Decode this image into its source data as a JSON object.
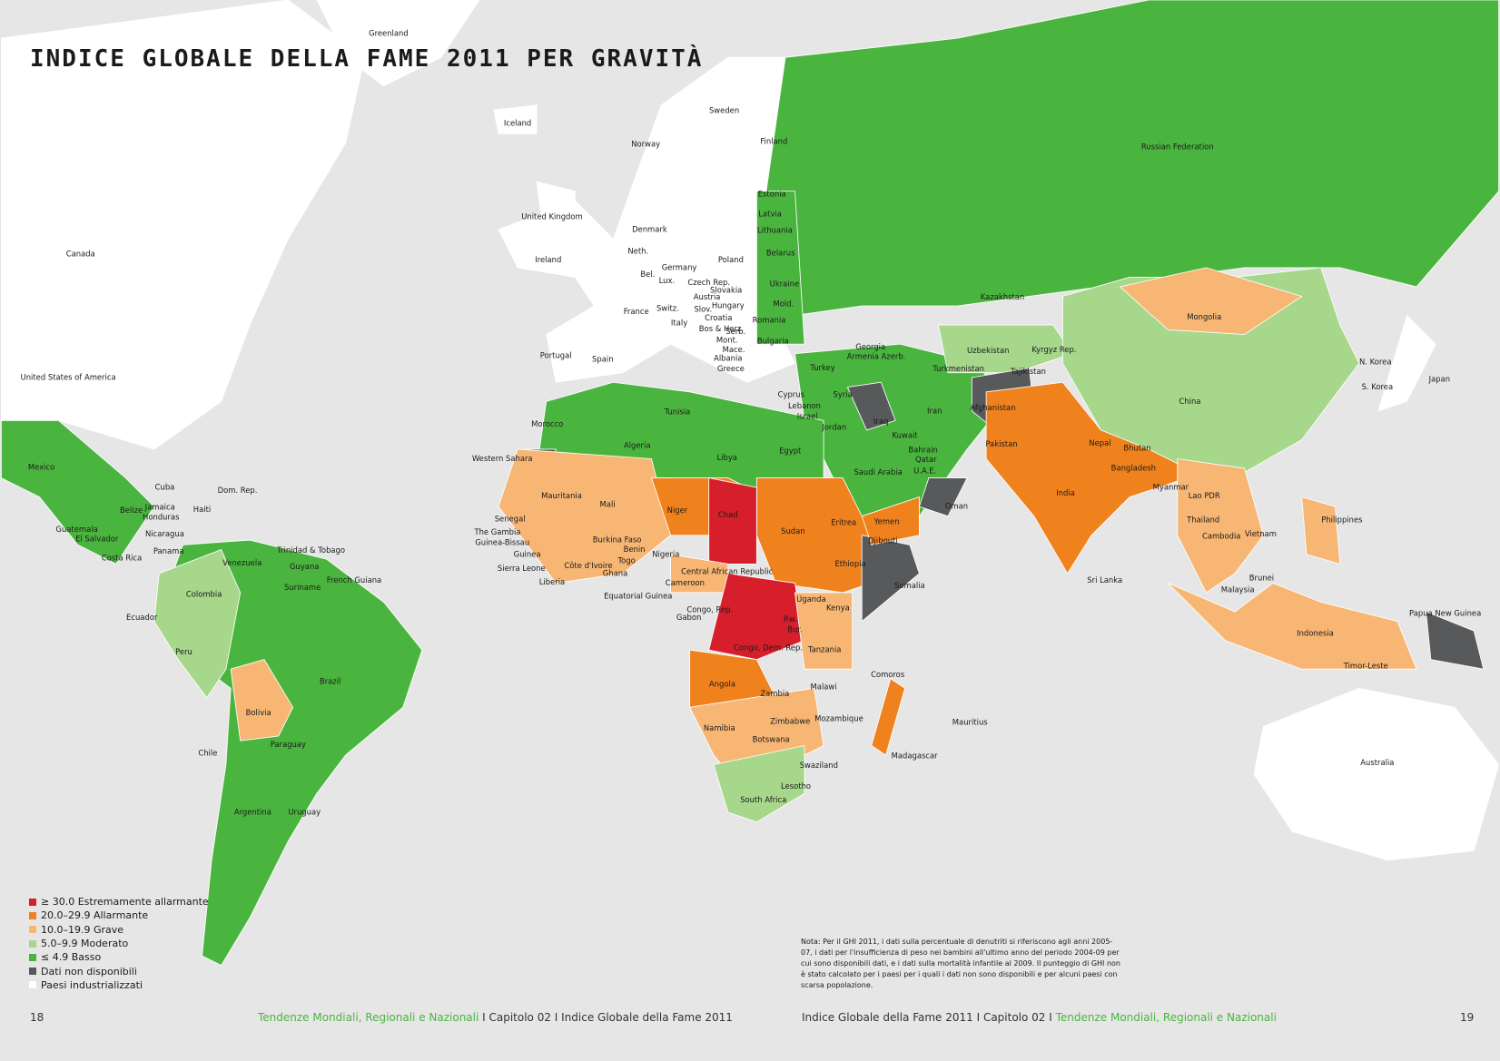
{
  "header": {
    "title": "INDICE GLOBALE DELLA FAME 2011 PER GRAVITÀ"
  },
  "legend": [
    {
      "label": "≥ 30.0 Estremamente allarmante",
      "color": "#d71f2b"
    },
    {
      "label": "20.0–29.9 Allarmante",
      "color": "#f0821e"
    },
    {
      "label": "10.0–19.9 Grave",
      "color": "#f7b674"
    },
    {
      "label": "5.0–9.9 Moderato",
      "color": "#a6d78a"
    },
    {
      "label": "≤ 4.9 Basso",
      "color": "#4ab53e"
    },
    {
      "label": "Dati non disponibili",
      "color": "#58595b"
    },
    {
      "label": "Paesi industrializzati",
      "color": "#ffffff"
    }
  ],
  "countries": [
    "Greenland",
    "Iceland",
    "Sweden",
    "Norway",
    "Finland",
    "Russian Federation",
    "Estonia",
    "United Kingdom",
    "Latvia",
    "Denmark",
    "Lithuania",
    "Belarus",
    "Canada",
    "Ireland",
    "Neth.",
    "Poland",
    "Germany",
    "Bel.",
    "Lux.",
    "Czech Rep.",
    "Ukraine",
    "Slovakia",
    "Austria",
    "Kazakhstan",
    "France",
    "Switz.",
    "Hungary",
    "Mold.",
    "Slov.",
    "Croatia",
    "Romania",
    "Mongolia",
    "Italy",
    "Bos & Herz.",
    "Serb.",
    "Mont.",
    "Bulgaria",
    "Mace.",
    "Georgia",
    "Uzbekistan",
    "Kyrgyz Rep.",
    "Portugal",
    "Spain",
    "Albania",
    "Armenia",
    "Azerb.",
    "N. Korea",
    "Turkey",
    "Turkmenistan",
    "Greece",
    "United States of America",
    "Tajikistan",
    "Japan",
    "S. Korea",
    "Cyprus",
    "Syria",
    "China",
    "Lebanon",
    "Iran",
    "Afghanistan",
    "Tunisia",
    "Israel",
    "Iraq",
    "Morocco",
    "Jordan",
    "Kuwait",
    "Nepal",
    "Bhutan",
    "Pakistan",
    "Algeria",
    "Libya",
    "Egypt",
    "Bahrain",
    "Western Sahara",
    "Qatar",
    "Mexico",
    "Bangladesh",
    "Saudi Arabia",
    "U.A.E.",
    "Dom. Rep.",
    "Cuba",
    "Myanmar",
    "Mauritania",
    "India",
    "Oman",
    "Lao PDR",
    "Mali",
    "Belize",
    "Jamaica",
    "Honduras",
    "Niger",
    "Haiti",
    "Chad",
    "Eritrea",
    "Yemen",
    "Philippines",
    "Senegal",
    "Thailand",
    "The Gambia",
    "Guatemala",
    "Nicaragua",
    "Sudan",
    "Vietnam",
    "Guinea-Bissau",
    "El Salvador",
    "Cambodia",
    "Djibouti",
    "Burkina Faso",
    "Benin",
    "Trinidad & Tobago",
    "Panama",
    "Nigeria",
    "Guinea",
    "Costa Rica",
    "Côte d'Ivoire",
    "Togo",
    "Venezuela",
    "Ghana",
    "Ethiopia",
    "Guyana",
    "Central African Republic",
    "Sierra Leone",
    "Liberia",
    "French Guiana",
    "Suriname",
    "Cameroon",
    "Sri Lanka",
    "Somalia",
    "Brunei",
    "Malaysia",
    "Colombia",
    "Equatorial Guinea",
    "Uganda",
    "Congo, Rep.",
    "Kenya",
    "Papua New Guinea",
    "Ecuador",
    "Gabon",
    "Rw.",
    "Bur.",
    "Indonesia",
    "Congo, Dem. Rep.",
    "Tanzania",
    "Peru",
    "Comoros",
    "Timor-Leste",
    "Brazil",
    "Angola",
    "Malawi",
    "Zambia",
    "Bolivia",
    "Mozambique",
    "Zimbabwe",
    "Mauritius",
    "Namibia",
    "Botswana",
    "Paraguay",
    "Chile",
    "Madagascar",
    "Australia",
    "Swaziland",
    "Lesotho",
    "South Africa",
    "Argentina",
    "Uruguay"
  ],
  "note": "Nota: Per il GHI 2011, i dati sulla percentuale di denutriti si riferiscono agli anni 2005-07, i dati per l'insufficienza di peso nei bambini all'ultimo anno del periodo 2004-09 per cui sono disponibili dati, e i dati sulla mortalità infantile al 2009. Il punteggio di GHI non è stato calcolato per i paesi per i quali i dati non sono disponibili e per alcuni paesi con scarsa popolazione.",
  "footer": {
    "left_page": "18",
    "left_green": "Tendenze Mondiali, Regionali e Nazionali",
    "left_text": " I Capitolo 02 I Indice Globale della Fame 2011",
    "right_text": "Indice Globale della Fame 2011 I Capitolo 02 I ",
    "right_green": "Tendenze Mondiali, Regionali e Nazionali",
    "right_page": "19"
  }
}
